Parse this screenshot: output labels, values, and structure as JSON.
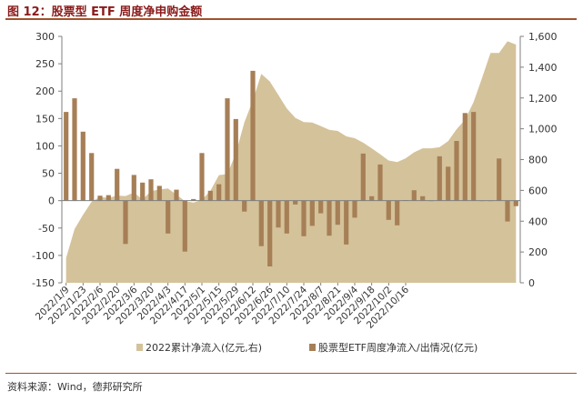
{
  "figure": {
    "title": "图 12：股票型 ETF 周度净申购金额",
    "source": "资料来源：Wind，德邦研究所"
  },
  "colors": {
    "area": "#d4c29a",
    "bar": "#a67f56",
    "title": "#8b1a1a",
    "rule": "#a0522d"
  },
  "chart_data": {
    "type": "bar+area",
    "x_tick_labels": [
      "2022/1/9",
      "2022/1/23",
      "2022/2/6",
      "2022/2/20",
      "2022/3/6",
      "2022/3/20",
      "2022/4/3",
      "2022/4/17",
      "2022/5/1",
      "2022/5/15",
      "2022/5/29",
      "2022/6/12",
      "2022/6/26",
      "2022/7/10",
      "2022/7/24",
      "2022/8/7",
      "2022/8/21",
      "2022/9/4",
      "2022/9/18",
      "2022/10/2",
      "2022/10/16"
    ],
    "y_left": {
      "min": -150,
      "max": 300,
      "ticks": [
        -150,
        -100,
        -50,
        0,
        50,
        100,
        150,
        200,
        250,
        300
      ]
    },
    "y_right": {
      "min": 0,
      "max": 1600,
      "ticks": [
        "0",
        "200",
        "400",
        "600",
        "800",
        "1,000",
        "1,200",
        "1,400",
        "1,600"
      ]
    },
    "series": [
      {
        "name": "2022累计净流入(亿元,右)",
        "type": "area",
        "axis": "right",
        "values": [
          162,
          349,
          441,
          526,
          558,
          551,
          566,
          563,
          586,
          541,
          595,
          606,
          613,
          572,
          531,
          520,
          539,
          597,
          699,
          706,
          840,
          1042,
          1184,
          1356,
          1307,
          1220,
          1132,
          1071,
          1043,
          1040,
          1018,
          993,
          986,
          951,
          939,
          910,
          873,
          835,
          794,
          784,
          808,
          847,
          873,
          873,
          880,
          920,
          997,
          1059,
          1173,
          1330,
          1492,
          1492,
          1568,
          1547
        ]
      },
      {
        "name": "股票型ETF周度净流入/出情况(亿元)",
        "type": "bar",
        "axis": "left",
        "values": [
          162,
          187,
          126,
          87,
          9,
          10,
          58,
          -79,
          47,
          33,
          39,
          27,
          -60,
          20,
          -93,
          3,
          87,
          18,
          30,
          187,
          149,
          -20,
          237,
          -83,
          -120,
          -49,
          -60,
          -7,
          -65,
          -46,
          -23,
          -64,
          -44,
          -80,
          -31,
          86,
          8,
          66,
          -35,
          -45,
          1,
          19,
          8,
          0,
          81,
          62,
          109,
          160,
          162,
          0,
          0,
          77,
          -38,
          -10
        ]
      }
    ]
  }
}
